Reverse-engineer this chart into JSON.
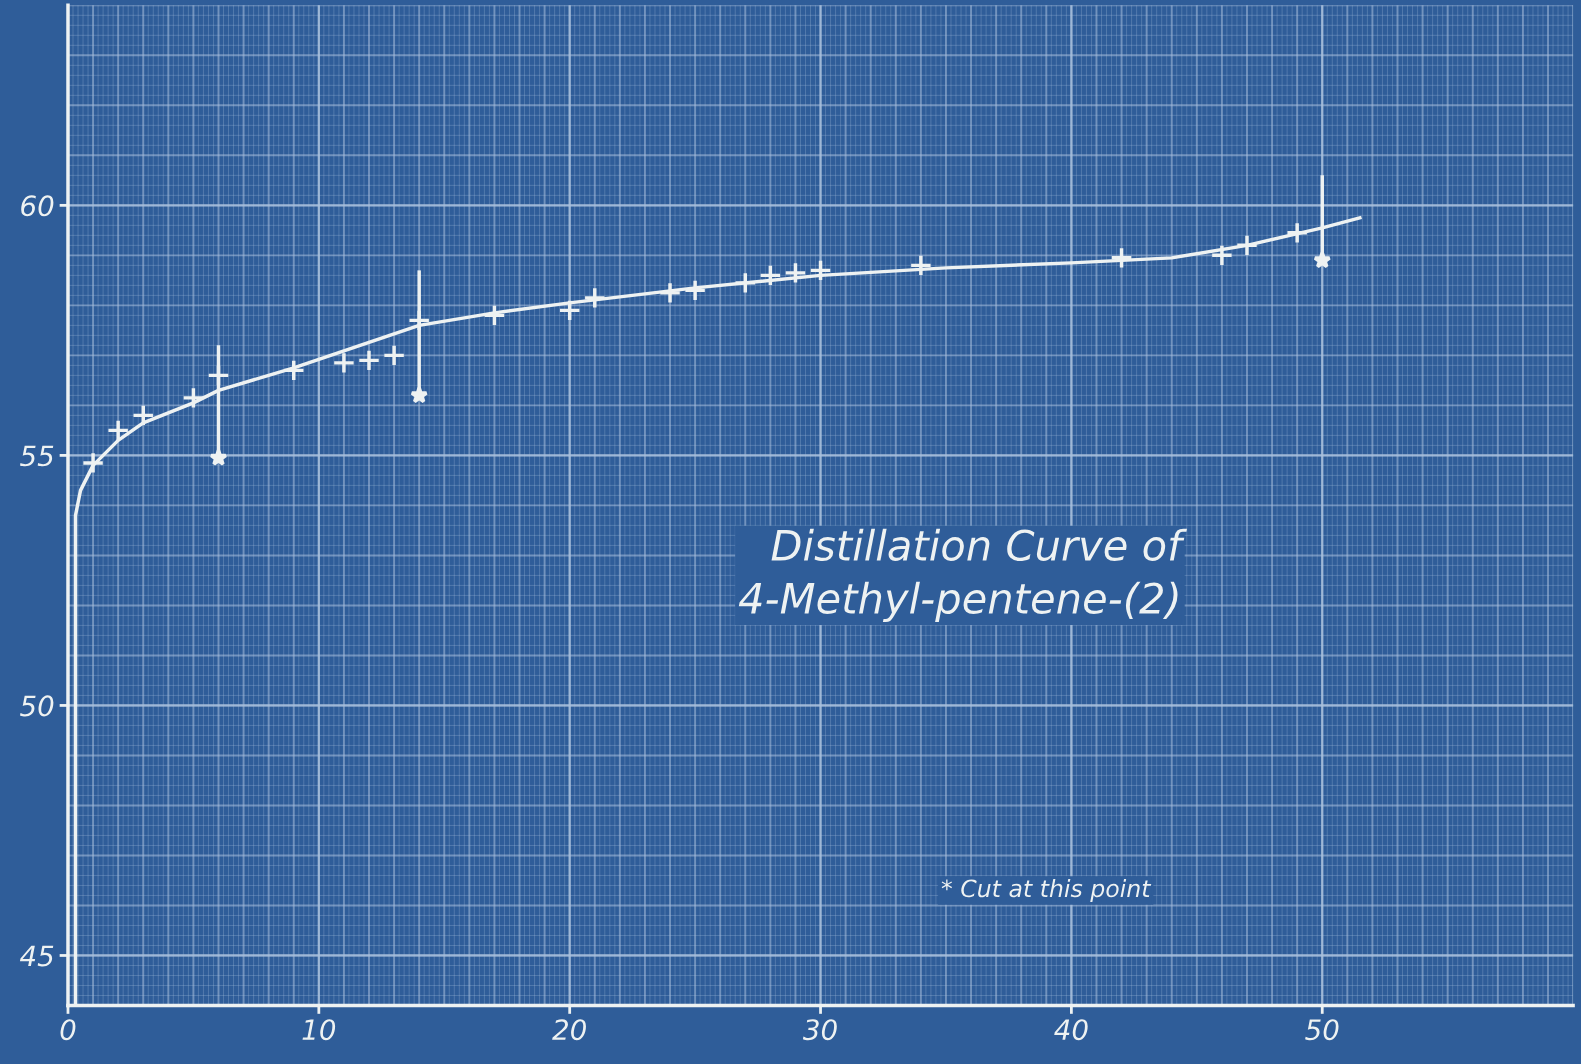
{
  "chart_data": {
    "type": "scatter",
    "title": "Distillation Curve of\n4-Methyl-pentene-(2)",
    "annotations": [
      "* Cut at this point"
    ],
    "xlim": [
      0,
      60
    ],
    "ylim": [
      44,
      64
    ],
    "xticks": [
      0,
      10,
      20,
      30,
      40,
      50
    ],
    "yticks": [
      45,
      50,
      55,
      60
    ],
    "grid": true,
    "series": [
      {
        "type": "line",
        "color": "#eef2f2",
        "marker": "none",
        "line_style": "solid",
        "x": [
          0.3,
          0.3,
          0.5,
          1,
          2,
          3,
          5,
          6,
          9,
          14,
          17,
          20,
          25,
          30,
          35,
          40,
          44,
          47,
          50,
          51.5
        ],
        "values": [
          44,
          53.8,
          54.3,
          54.8,
          55.3,
          55.65,
          56.05,
          56.3,
          56.75,
          57.6,
          57.85,
          58.05,
          58.35,
          58.6,
          58.75,
          58.85,
          58.95,
          59.2,
          59.55,
          59.75
        ]
      },
      {
        "color": "#eef2f2",
        "marker": "cross",
        "x": [
          1,
          2,
          3,
          5,
          6,
          9,
          11,
          12,
          13,
          14,
          17,
          20,
          21,
          24,
          25,
          27,
          28,
          29,
          30,
          34,
          42,
          46,
          47,
          49
        ],
        "values": [
          54.85,
          55.5,
          55.8,
          56.15,
          56.6,
          56.7,
          56.85,
          56.9,
          57.0,
          57.7,
          57.8,
          57.9,
          58.15,
          58.25,
          58.3,
          58.45,
          58.6,
          58.65,
          58.7,
          58.8,
          58.95,
          59.0,
          59.2,
          59.45
        ]
      },
      {
        "color": "#eef2f2",
        "marker": "star",
        "x": [
          6,
          14,
          50
        ],
        "values": [
          54.95,
          56.2,
          58.9
        ],
        "errors": [
          [
            54.95,
            57.2
          ],
          [
            56.2,
            58.7
          ],
          [
            58.9,
            60.6
          ]
        ]
      }
    ]
  }
}
